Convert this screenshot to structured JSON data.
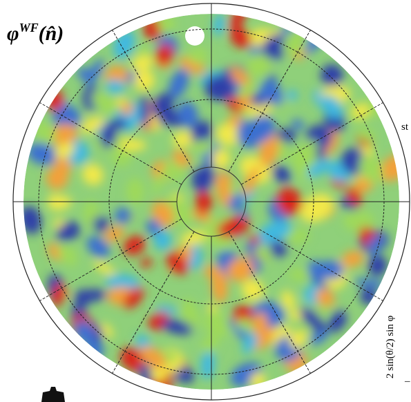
{
  "figure": {
    "title": {
      "symbol": "φ",
      "superscript": "WF",
      "argument": "(n̂)"
    },
    "side_text": "st",
    "axis_label": "2 sin(θ/2) sin φ",
    "corner_mark": "–"
  }
}
